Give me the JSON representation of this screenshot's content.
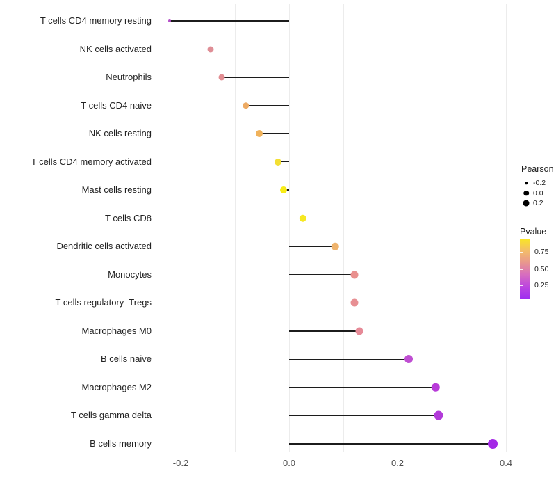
{
  "chart_data": {
    "type": "scatter",
    "subtype": "lollipop",
    "title": "",
    "xlabel": "",
    "ylabel": "",
    "xlim": [
      -0.25,
      0.46
    ],
    "x_ticks": [
      "-0.2",
      "0.0",
      "0.2",
      "0.4"
    ],
    "x_tick_values": [
      -0.2,
      0.0,
      0.2,
      0.4
    ],
    "grid_values": [
      -0.2,
      -0.1,
      0.0,
      0.1,
      0.2,
      0.3,
      0.4
    ],
    "grid": "vertical-only, light gray, every 0.1",
    "legend_position": "right",
    "categories": [
      "T cells CD4 memory resting",
      "NK cells activated",
      "Neutrophils",
      "T cells CD4 naive",
      "NK cells resting",
      "T cells CD4 memory activated",
      "Mast cells resting",
      "T cells CD8",
      "Dendritic cells activated",
      "Monocytes",
      "T cells regulatory  Tregs",
      "Macrophages M0",
      "B cells naive",
      "Macrophages M2",
      "T cells gamma delta",
      "B cells memory"
    ],
    "series": [
      {
        "name": "Pearson",
        "values": [
          -0.22,
          -0.145,
          -0.125,
          -0.08,
          -0.055,
          -0.02,
          -0.01,
          0.025,
          0.085,
          0.12,
          0.12,
          0.13,
          0.22,
          0.27,
          0.275,
          0.375
        ]
      }
    ],
    "points": [
      {
        "label": "T cells CD4 memory resting",
        "pearson": -0.22,
        "color": "#b44fc8",
        "size": 4
      },
      {
        "label": "NK cells activated",
        "pearson": -0.145,
        "color": "#df8e96",
        "size": 9
      },
      {
        "label": "Neutrophils",
        "pearson": -0.125,
        "color": "#e28d92",
        "size": 9
      },
      {
        "label": "T cells CD4 naive",
        "pearson": -0.08,
        "color": "#edaa63",
        "size": 9.5
      },
      {
        "label": "NK cells resting",
        "pearson": -0.055,
        "color": "#f0b25b",
        "size": 10
      },
      {
        "label": "T cells CD4 memory activated",
        "pearson": -0.02,
        "color": "#f3df33",
        "size": 10
      },
      {
        "label": "Mast cells resting",
        "pearson": -0.01,
        "color": "#f8ec16",
        "size": 10
      },
      {
        "label": "T cells CD8",
        "pearson": 0.025,
        "color": "#f6e822",
        "size": 10.5
      },
      {
        "label": "Dendritic cells activated",
        "pearson": 0.085,
        "color": "#efb36c",
        "size": 10.5
      },
      {
        "label": "Monocytes",
        "pearson": 0.12,
        "color": "#e9908e",
        "size": 11
      },
      {
        "label": "T cells regulatory  Tregs",
        "pearson": 0.12,
        "color": "#e78f93",
        "size": 11
      },
      {
        "label": "Macrophages M0",
        "pearson": 0.13,
        "color": "#e68a97",
        "size": 11
      },
      {
        "label": "B cells naive",
        "pearson": 0.22,
        "color": "#bf4ed2",
        "size": 12
      },
      {
        "label": "Macrophages M2",
        "pearson": 0.27,
        "color": "#b83bd9",
        "size": 12.5
      },
      {
        "label": "T cells gamma delta",
        "pearson": 0.275,
        "color": "#b23ad9",
        "size": 13
      },
      {
        "label": "B cells memory",
        "pearson": 0.375,
        "color": "#a428e6",
        "size": 14
      }
    ],
    "legend": {
      "pearson": {
        "title": "Pearson",
        "items": [
          {
            "label": "-0.2",
            "size": 3.5
          },
          {
            "label": "0.0",
            "size": 7.5
          },
          {
            "label": "0.2",
            "size": 9
          }
        ]
      },
      "pvalue": {
        "title": "Pvalue",
        "ticks": [
          "0.75",
          "0.50",
          "0.25"
        ],
        "gradient_top_to_bottom": [
          "#f9e624",
          "#f3bd69",
          "#e8968f",
          "#d66cc0",
          "#bb45e0",
          "#9e2df0"
        ]
      }
    },
    "colors": {
      "stem": "#1c1c1c",
      "gridline": "#ececec",
      "axis_text": "#4d4d4d",
      "background": "#ffffff"
    }
  }
}
